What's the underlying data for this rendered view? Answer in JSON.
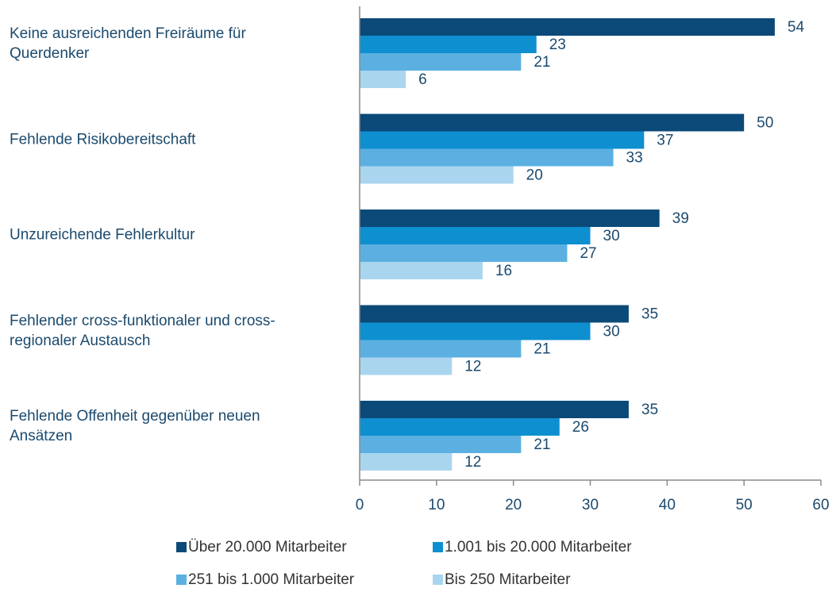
{
  "chart_data": {
    "type": "bar",
    "orientation": "horizontal",
    "categories": [
      "Keine ausreichenden Freiräume für\nQuerdenker",
      "Fehlende Risikobereitschaft",
      "Unzureichende Fehlerkultur",
      "Fehlender cross-funktionaler und cross-\nregionaler Austausch",
      "Fehlende Offenheit gegenüber neuen\nAnsätzen"
    ],
    "series": [
      {
        "name": "Über 20.000 Mitarbeiter",
        "color": "#0b4a78",
        "values": [
          54,
          50,
          39,
          35,
          35
        ]
      },
      {
        "name": "1.001 bis 20.000 Mitarbeiter",
        "color": "#0e8fd0",
        "values": [
          23,
          37,
          30,
          30,
          26
        ]
      },
      {
        "name": "251 bis 1.000 Mitarbeiter",
        "color": "#5bb0e1",
        "values": [
          21,
          33,
          27,
          21,
          21
        ]
      },
      {
        "name": "Bis 250 Mitarbeiter",
        "color": "#a9d5ef",
        "values": [
          6,
          20,
          16,
          12,
          12
        ]
      }
    ],
    "xlim": [
      0,
      60
    ],
    "xticks": [
      0,
      10,
      20,
      30,
      40,
      50,
      60
    ],
    "legend": "bottom"
  }
}
